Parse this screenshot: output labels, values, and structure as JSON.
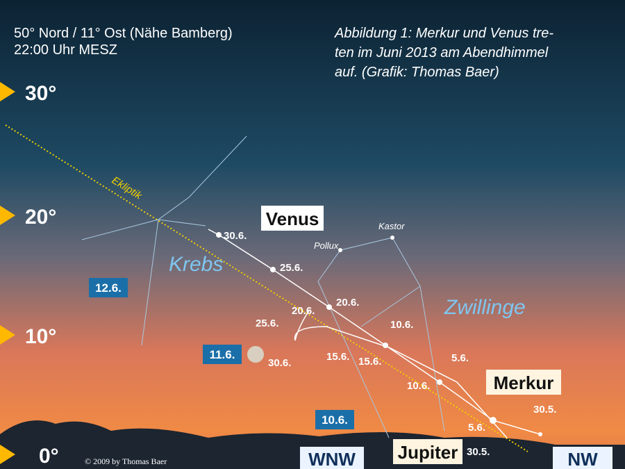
{
  "header": {
    "location": "50° Nord / 11° Ost (Nähe Bamberg)",
    "time": "22:00 Uhr MESZ"
  },
  "caption": [
    "Abbildung 1: Merkur und Venus tre-",
    "ten im Juni 2013 am Abendhimmel",
    "auf. (Grafik: Thomas Baer)"
  ],
  "altitude_labels": [
    "30°",
    "20°",
    "10°",
    "0°"
  ],
  "ecliptic_label": "Ekliptik",
  "constellations": [
    "Krebs",
    "Zwillinge"
  ],
  "stars": [
    "Kastor",
    "Pollux"
  ],
  "planets": [
    "Venus",
    "Merkur",
    "Jupiter"
  ],
  "venus_dates": [
    "30.6.",
    "25.6.",
    "20.6.",
    "15.6.",
    "10.6.",
    "5.6.",
    "30.5."
  ],
  "mercury_dates": [
    "20.6.",
    "25.6.",
    "30.6.",
    "15.6.",
    "10.6.",
    "5.6.",
    "30.5."
  ],
  "moon_dates": [
    "12.6.",
    "11.6.",
    "10.6."
  ],
  "directions": [
    "WNW",
    "NW"
  ],
  "copyright": "© 2009 by Thomas Baer"
}
